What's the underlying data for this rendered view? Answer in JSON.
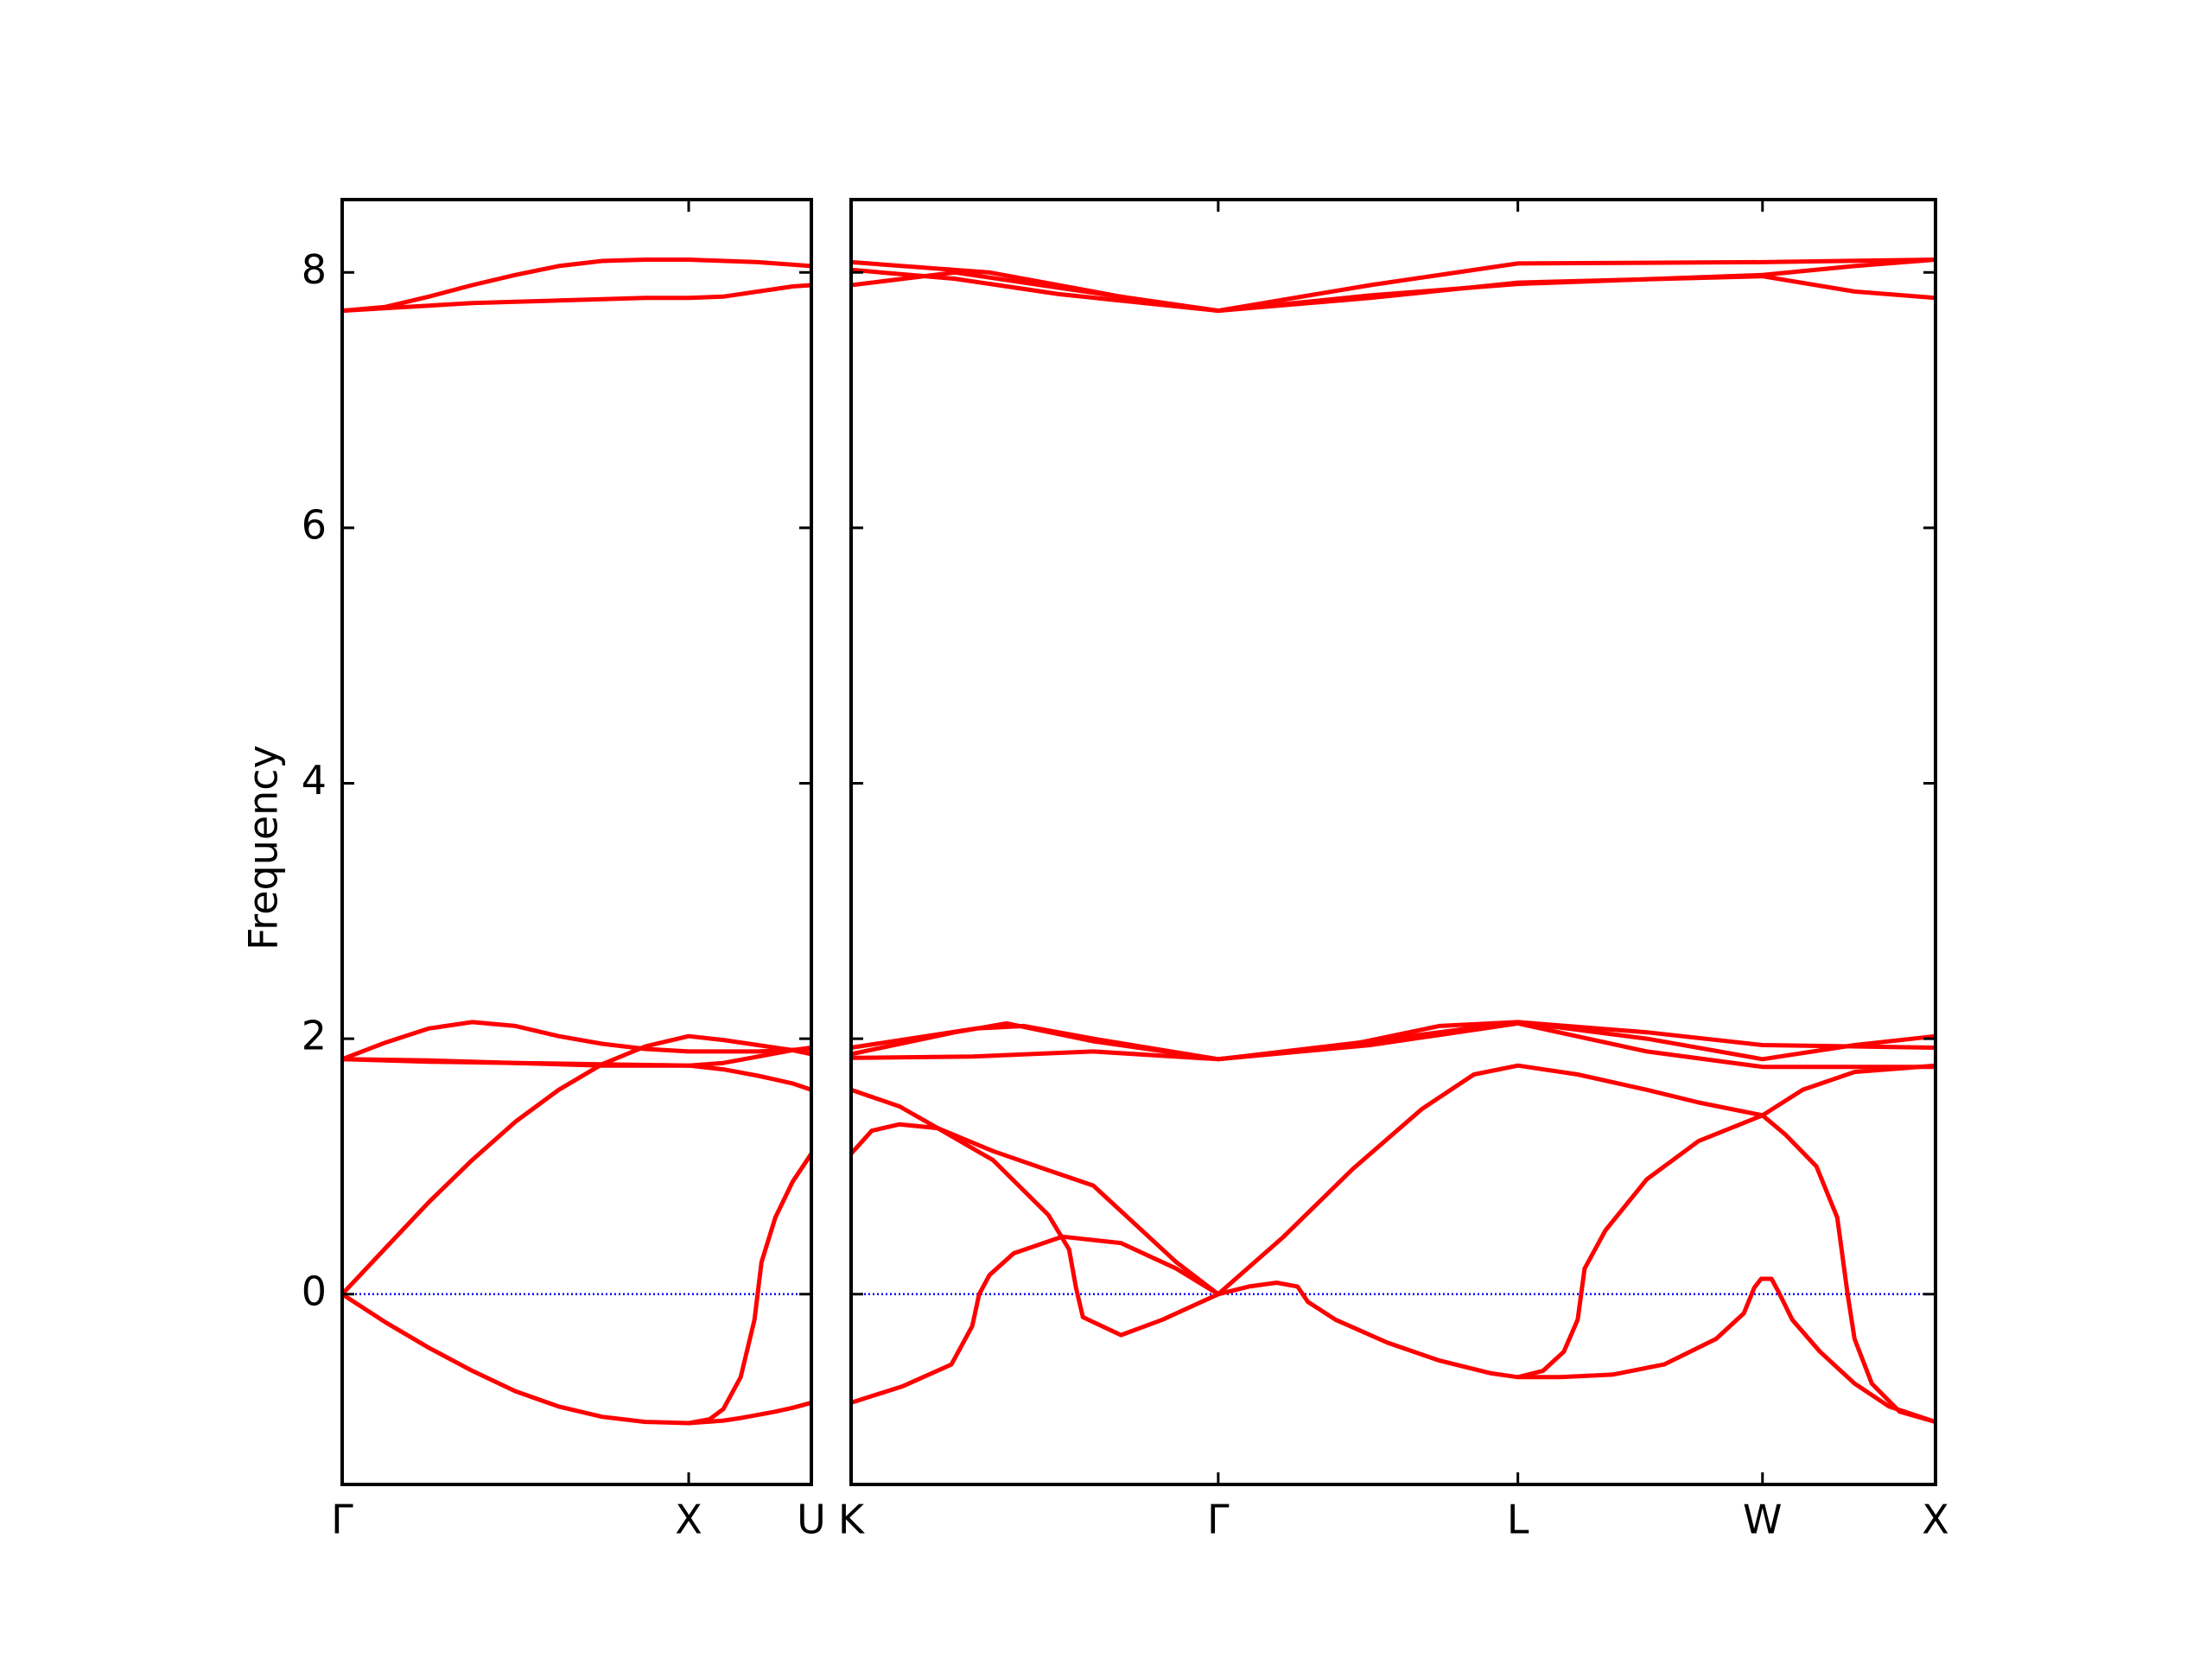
{
  "chart_data": [
    {
      "type": "line",
      "ylabel": "Frequency",
      "xlim": [
        0,
        1.354
      ],
      "ylim": [
        -1.49,
        8.57
      ],
      "xticks": [
        {
          "value": 0,
          "label": "Γ"
        },
        {
          "value": 1,
          "label": "X"
        },
        {
          "value": 1.354,
          "label": "U"
        }
      ],
      "yticks": [
        0,
        2,
        4,
        6,
        8
      ],
      "hline": 0,
      "hline_color": "#0000ff",
      "color": "#ff0000",
      "series": [
        {
          "x": [
            0,
            0.125,
            0.25,
            0.375,
            0.5,
            0.625,
            0.75,
            0.875,
            1,
            1.1,
            1.15,
            1.19,
            1.21,
            1.25,
            1.3,
            1.354
          ],
          "values": [
            0,
            -0.22,
            -0.42,
            -0.6,
            -0.76,
            -0.88,
            -0.96,
            -1.0,
            -1.01,
            -0.99,
            -0.97,
            -0.95,
            -0.94,
            -0.92,
            -0.89,
            -0.85
          ]
        },
        {
          "x": [
            1,
            1.06,
            1.1,
            1.15,
            1.19,
            1.21,
            1.25,
            1.3,
            1.354
          ],
          "values": [
            -1.01,
            -0.98,
            -0.9,
            -0.65,
            -0.2,
            0.25,
            0.6,
            0.88,
            1.1
          ]
        },
        {
          "x": [
            0,
            0.125,
            0.25,
            0.375,
            0.5,
            0.625,
            0.75,
            0.875,
            1,
            1.1,
            1.2,
            1.3,
            1.354
          ],
          "values": [
            0,
            0.36,
            0.72,
            1.05,
            1.35,
            1.6,
            1.8,
            1.94,
            2.02,
            1.99,
            1.95,
            1.91,
            1.88
          ]
        },
        {
          "x": [
            0,
            0.125,
            0.25,
            0.375,
            0.5,
            0.625,
            0.75,
            0.875,
            1,
            1.2,
            1.354
          ],
          "values": [
            1.84,
            1.97,
            2.08,
            2.13,
            2.1,
            2.02,
            1.96,
            1.92,
            1.9,
            1.9,
            1.92
          ]
        },
        {
          "x": [
            0,
            0.25,
            0.5,
            0.75,
            1,
            1.1,
            1.2,
            1.3,
            1.354
          ],
          "values": [
            1.84,
            1.83,
            1.81,
            1.8,
            1.79,
            1.76,
            1.71,
            1.65,
            1.6
          ]
        },
        {
          "x": [
            0,
            0.25,
            0.5,
            0.75,
            1,
            1.1,
            1.2,
            1.3,
            1.354
          ],
          "values": [
            1.84,
            1.82,
            1.81,
            1.79,
            1.79,
            1.81,
            1.86,
            1.91,
            1.93
          ]
        },
        {
          "x": [
            0,
            0.125,
            0.25,
            0.375,
            0.5,
            0.625,
            0.75,
            0.875,
            1,
            1.2,
            1.354
          ],
          "values": [
            7.7,
            7.73,
            7.81,
            7.9,
            7.98,
            8.05,
            8.09,
            8.1,
            8.1,
            8.08,
            8.05
          ]
        },
        {
          "x": [
            0,
            0.125,
            0.25,
            0.375,
            0.5,
            0.625,
            0.75,
            0.875,
            1,
            1.1,
            1.2,
            1.3,
            1.354
          ],
          "values": [
            7.7,
            7.72,
            7.74,
            7.76,
            7.77,
            7.78,
            7.79,
            7.8,
            7.8,
            7.81,
            7.85,
            7.89,
            7.9
          ]
        }
      ]
    },
    {
      "type": "line",
      "xlim": [
        0,
        3.134
      ],
      "ylim": [
        -1.49,
        8.57
      ],
      "xticks": [
        {
          "value": 0,
          "label": "K"
        },
        {
          "value": 1.061,
          "label": "Γ"
        },
        {
          "value": 1.927,
          "label": "L"
        },
        {
          "value": 2.634,
          "label": "W"
        },
        {
          "value": 3.134,
          "label": "X"
        }
      ],
      "hline": 0,
      "hline_color": "#0000ff",
      "color": "#ff0000",
      "series": [
        {
          "x": [
            0,
            0.15,
            0.29,
            0.35,
            0.37,
            0.4,
            0.47,
            0.61,
            0.78,
            0.94,
            1.061
          ],
          "values": [
            -0.85,
            -0.72,
            -0.55,
            -0.25,
            0.0,
            0.15,
            0.32,
            0.45,
            0.4,
            0.2,
            0
          ]
        },
        {
          "x": [
            0,
            0.06,
            0.14,
            0.25,
            0.41,
            0.57,
            0.63,
            0.65,
            0.67,
            0.78,
            0.9,
            1.061
          ],
          "values": [
            1.1,
            1.28,
            1.33,
            1.3,
            1.05,
            0.62,
            0.35,
            0.05,
            -0.18,
            -0.32,
            -0.2,
            0
          ]
        },
        {
          "x": [
            0,
            0.14,
            0.25,
            0.41,
            0.57,
            0.7,
            0.8,
            0.94,
            1.061
          ],
          "values": [
            1.6,
            1.47,
            1.3,
            1.12,
            0.97,
            0.85,
            0.6,
            0.25,
            0
          ]
        },
        {
          "x": [
            1.061,
            1.25,
            1.45,
            1.65,
            1.8,
            1.927,
            2.1,
            2.3,
            2.45,
            2.634,
            2.7,
            2.79,
            2.85,
            2.88,
            2.9,
            2.95,
            3.03,
            3.134
          ],
          "values": [
            0,
            0.45,
            0.98,
            1.45,
            1.72,
            1.79,
            1.72,
            1.6,
            1.5,
            1.4,
            1.25,
            1.0,
            0.6,
            0.0,
            -0.35,
            -0.7,
            -0.92,
            -1.0
          ]
        },
        {
          "x": [
            1.061,
            1.15,
            1.23,
            1.29,
            1.32,
            1.4,
            1.55,
            1.7,
            1.85,
            1.927,
            2.05,
            2.2,
            2.35,
            2.5,
            2.58,
            2.61,
            2.63,
            2.66,
            2.68,
            2.72,
            2.8,
            2.9,
            3.0,
            3.134
          ],
          "values": [
            0,
            0.06,
            0.09,
            0.06,
            -0.06,
            -0.2,
            -0.38,
            -0.52,
            -0.62,
            -0.65,
            -0.65,
            -0.63,
            -0.55,
            -0.35,
            -0.15,
            0.05,
            0.12,
            0.12,
            0.02,
            -0.2,
            -0.45,
            -0.7,
            -0.88,
            -1.0
          ]
        },
        {
          "x": [
            1.927,
            2.0,
            2.06,
            2.1,
            2.12,
            2.18,
            2.3,
            2.45,
            2.634,
            2.75,
            2.9,
            3.134
          ],
          "values": [
            -0.65,
            -0.6,
            -0.45,
            -0.2,
            0.2,
            0.5,
            0.9,
            1.2,
            1.4,
            1.6,
            1.74,
            1.79
          ]
        },
        {
          "x": [
            0,
            0.36,
            0.5,
            0.7,
            1.061,
            1.4,
            1.7,
            1.927,
            2.3,
            2.634,
            3.134
          ],
          "values": [
            1.93,
            2.08,
            2.1,
            2.0,
            1.84,
            1.93,
            2.1,
            2.13,
            2.05,
            1.95,
            1.93
          ]
        },
        {
          "x": [
            0,
            0.3,
            0.45,
            0.7,
            1.061,
            1.5,
            1.927,
            2.3,
            2.634,
            2.9,
            3.134
          ],
          "values": [
            1.88,
            2.05,
            2.12,
            1.98,
            1.84,
            1.98,
            2.13,
            2.0,
            1.84,
            1.95,
            2.02
          ]
        },
        {
          "x": [
            0,
            0.35,
            0.7,
            1.061,
            1.5,
            1.927,
            2.3,
            2.634,
            3.134
          ],
          "values": [
            1.85,
            1.86,
            1.9,
            1.84,
            1.95,
            2.12,
            1.9,
            1.78,
            1.78
          ]
        },
        {
          "x": [
            0,
            0.4,
            0.8,
            1.061,
            1.5,
            1.927,
            2.634,
            3.134
          ],
          "values": [
            8.08,
            8.0,
            7.8,
            7.7,
            7.9,
            8.07,
            8.08,
            8.1
          ]
        },
        {
          "x": [
            0,
            0.3,
            0.6,
            1.061,
            1.5,
            1.927,
            2.634,
            2.9,
            3.134
          ],
          "values": [
            7.9,
            8.0,
            7.88,
            7.7,
            7.82,
            7.91,
            7.98,
            8.05,
            8.1
          ]
        },
        {
          "x": [
            0,
            0.3,
            0.6,
            1.061,
            1.5,
            1.927,
            2.634,
            2.9,
            3.134
          ],
          "values": [
            8.02,
            7.95,
            7.83,
            7.7,
            7.8,
            7.92,
            7.97,
            7.85,
            7.8
          ]
        }
      ]
    }
  ]
}
